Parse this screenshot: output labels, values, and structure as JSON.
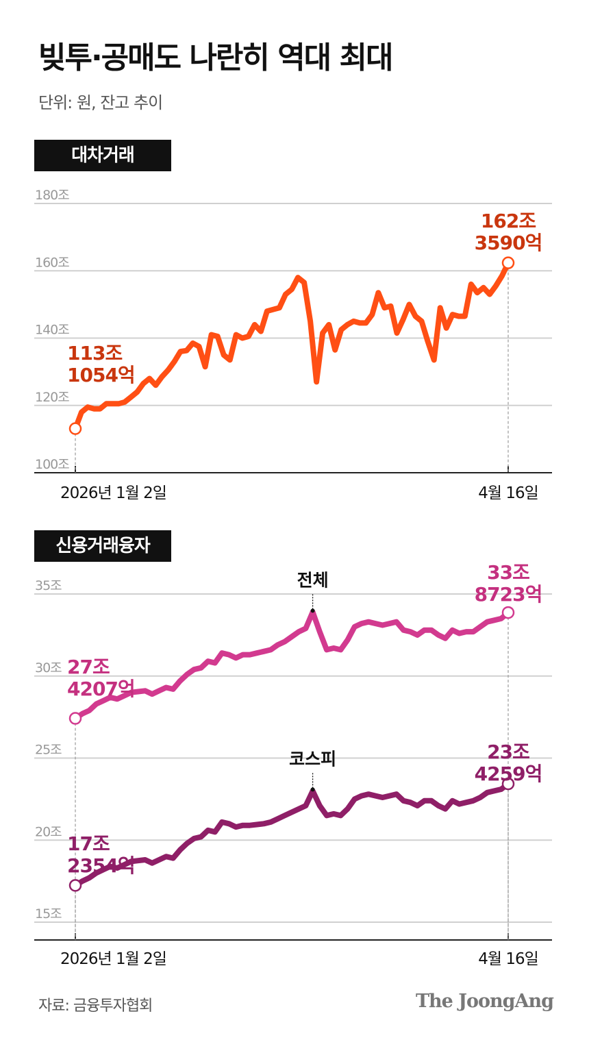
{
  "title": "빚투·공매도 나란히 역대 최대",
  "subtitle": "단위: 원, 잔고 추이",
  "source": "자료: 금융투자협회",
  "logo": "The JoongAng",
  "colors": {
    "lending": "#ff4f14",
    "lending_label": "#c9360e",
    "total": "#d23a8f",
    "total_label": "#c4307f",
    "kospi": "#8f1f67",
    "kospi_label": "#8f1f67"
  },
  "chart_data": [
    {
      "type": "line",
      "title": "대차거래",
      "x_start_label": "2026년 1월 2일",
      "x_end_label": "4월 16일",
      "ylim": [
        100,
        180
      ],
      "yticks": [
        100,
        120,
        140,
        160,
        180
      ],
      "ytick_labels": [
        "100조",
        "120조",
        "140조",
        "160조",
        "180조"
      ],
      "grid": true,
      "series": [
        {
          "values": [
            113.1,
            118,
            119.5,
            119,
            119,
            120.5,
            120.5,
            120.5,
            121,
            122.5,
            124,
            126.5,
            128,
            126,
            128.5,
            130.5,
            133,
            136,
            136.3,
            138.5,
            137.5,
            131.5,
            141,
            140.5,
            135,
            133.5,
            141,
            140,
            140.5,
            144,
            142,
            148,
            148.5,
            149,
            153,
            154.5,
            158,
            156.5,
            145,
            127,
            141.5,
            144,
            136.5,
            142.5,
            144,
            145,
            144.5,
            144.5,
            147,
            153.5,
            149,
            149.5,
            141.5,
            145.5,
            150,
            146.5,
            145,
            139,
            133.5,
            149,
            143,
            147,
            146.5,
            146.5,
            156,
            153.5,
            155,
            153,
            155.5,
            158.5,
            162.36
          ],
          "start_label": [
            "113조",
            "1054억"
          ],
          "end_label": [
            "162조",
            "3590억"
          ]
        }
      ]
    },
    {
      "type": "line",
      "title": "신용거래융자",
      "x_start_label": "2026년 1월 2일",
      "x_end_label": "4월 16일",
      "ylim": [
        15,
        35
      ],
      "yticks": [
        15,
        20,
        25,
        30,
        35
      ],
      "ytick_labels": [
        "15조",
        "20조",
        "25조",
        "30조",
        "35조"
      ],
      "grid": true,
      "series": [
        {
          "name": "전체",
          "values": [
            27.42,
            27.7,
            27.9,
            28.3,
            28.5,
            28.7,
            28.6,
            28.8,
            29.0,
            29.05,
            29.1,
            28.9,
            29.1,
            29.3,
            29.2,
            29.7,
            30.1,
            30.4,
            30.5,
            30.9,
            30.8,
            31.4,
            31.3,
            31.1,
            31.3,
            31.3,
            31.4,
            31.5,
            31.6,
            31.9,
            32.1,
            32.4,
            32.7,
            32.9,
            33.9,
            32.7,
            31.6,
            31.7,
            31.6,
            32.2,
            33.0,
            33.2,
            33.3,
            33.2,
            33.1,
            33.2,
            33.3,
            32.8,
            32.7,
            32.5,
            32.8,
            32.8,
            32.5,
            32.3,
            32.8,
            32.6,
            32.7,
            32.7,
            33.0,
            33.3,
            33.4,
            33.5,
            33.87
          ],
          "start_label": [
            "27조",
            "4207억"
          ],
          "end_label": [
            "33조",
            "8723억"
          ]
        },
        {
          "name": "코스피",
          "values": [
            17.24,
            17.5,
            17.7,
            18.0,
            18.2,
            18.4,
            18.3,
            18.5,
            18.7,
            18.75,
            18.8,
            18.6,
            18.8,
            19.0,
            18.9,
            19.4,
            19.8,
            20.1,
            20.2,
            20.6,
            20.5,
            21.1,
            21.0,
            20.8,
            20.9,
            20.9,
            20.95,
            21.0,
            21.1,
            21.3,
            21.5,
            21.7,
            21.9,
            22.1,
            23.0,
            22.1,
            21.5,
            21.6,
            21.5,
            21.9,
            22.5,
            22.7,
            22.8,
            22.7,
            22.6,
            22.7,
            22.8,
            22.4,
            22.3,
            22.1,
            22.4,
            22.4,
            22.1,
            21.9,
            22.4,
            22.2,
            22.3,
            22.4,
            22.6,
            22.9,
            23.0,
            23.1,
            23.43
          ],
          "start_label": [
            "17조",
            "2354억"
          ],
          "end_label": [
            "23조",
            "4259억"
          ]
        }
      ]
    }
  ]
}
